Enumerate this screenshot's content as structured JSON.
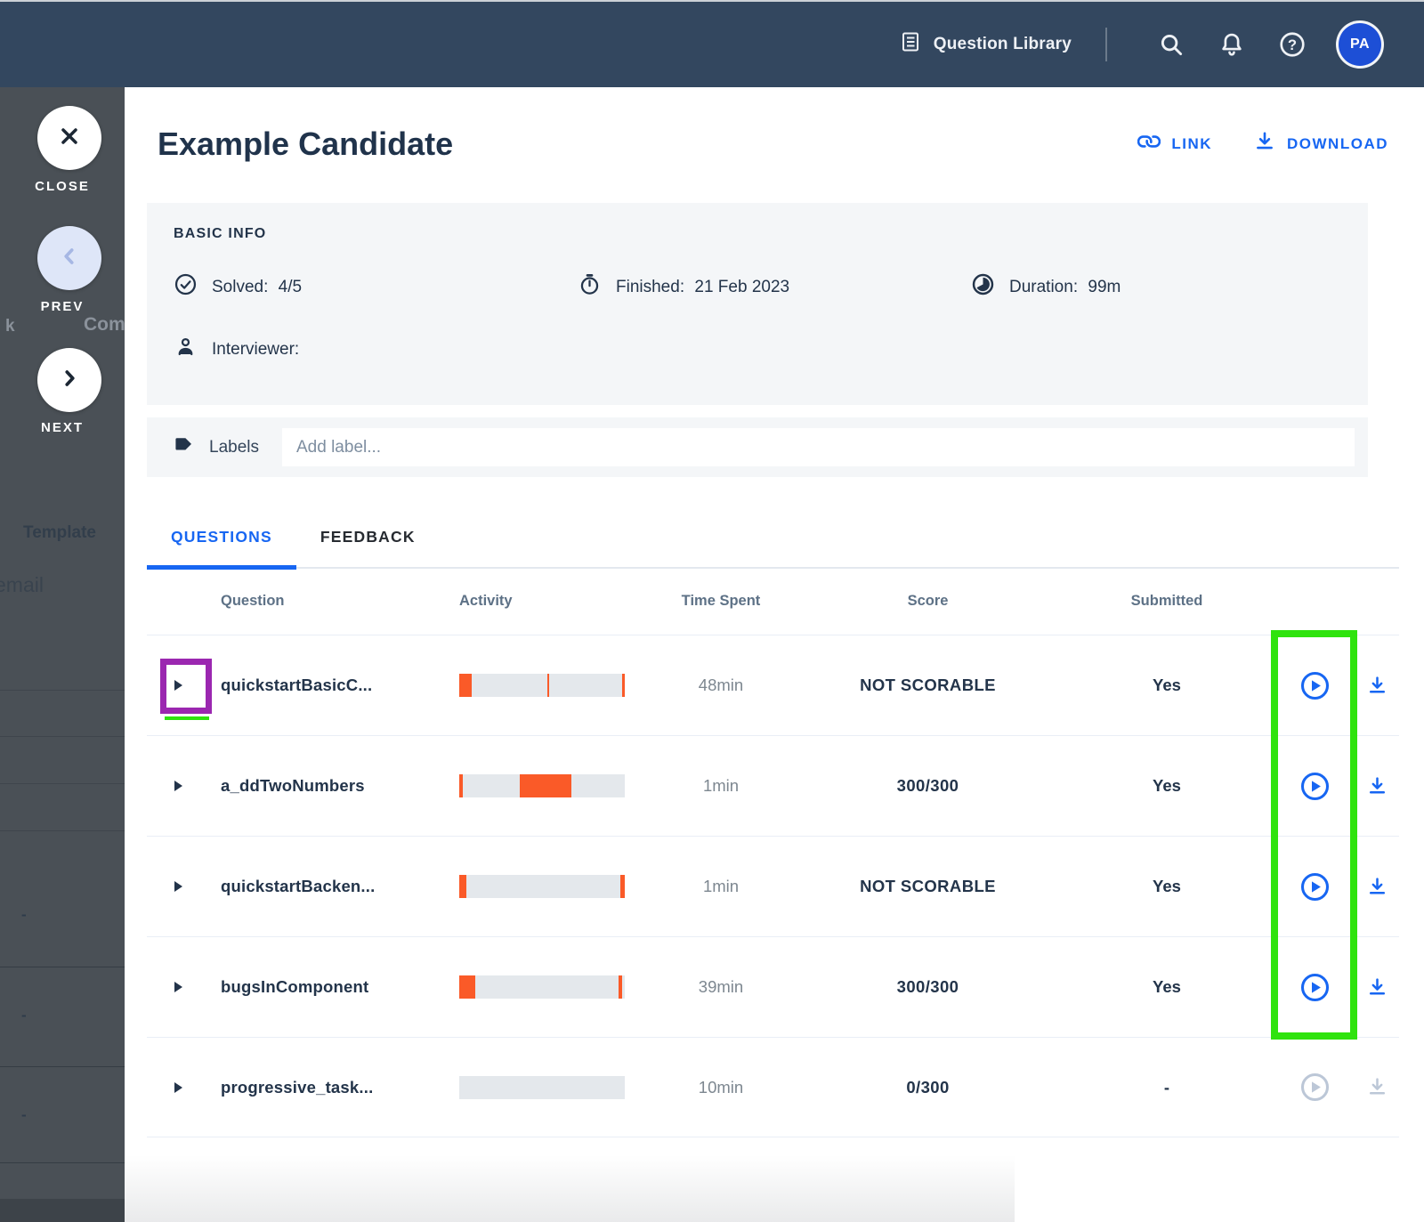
{
  "colors": {
    "navbar_bg": "#33475f",
    "sidebar_overlay": "#4a5056",
    "accent_blue": "#1766f2",
    "activity_orange": "#fa5a28",
    "activity_track": "#e4e8ec",
    "card_bg": "#f4f6f8",
    "dark_text": "#23344a",
    "annotation_green": "#2fe30e",
    "annotation_purple": "#9b27b0",
    "avatar_bg": "#1d4fd6"
  },
  "navbar": {
    "question_library": "Question Library",
    "avatar_initials": "PA"
  },
  "sidebar": {
    "close_label": "CLOSE",
    "prev_label": "PREV",
    "next_label": "NEXT",
    "background_fragments": {
      "left_fragment": "k",
      "right_fragment": "Com",
      "template": "Template",
      "email": "email",
      "dashes": [
        "-",
        "-",
        "-",
        "-"
      ]
    }
  },
  "header": {
    "title": "Example Candidate",
    "link_label": "LINK",
    "download_label": "DOWNLOAD"
  },
  "basic_info": {
    "section_title": "BASIC INFO",
    "solved_label": "Solved:",
    "solved_value": "4/5",
    "finished_label": "Finished:",
    "finished_value": "21 Feb 2023",
    "duration_label": "Duration:",
    "duration_value": "99m",
    "interviewer_label": "Interviewer:"
  },
  "labels_row": {
    "label": "Labels",
    "placeholder": "Add label..."
  },
  "tabs": {
    "questions": "QUESTIONS",
    "feedback": "FEEDBACK"
  },
  "table": {
    "columns": [
      "Question",
      "Activity",
      "Time Spent",
      "Score",
      "Submitted"
    ],
    "rows": [
      {
        "question": "quickstartBasicC...",
        "time": "48min",
        "score": "NOT SCORABLE",
        "submitted": "Yes",
        "enabled": true,
        "activity": [
          [
            0,
            0.077
          ],
          [
            0.53,
            0.014
          ],
          [
            0.985,
            0.015
          ]
        ]
      },
      {
        "question": "a_ddTwoNumbers",
        "time": "1min",
        "score": "300/300",
        "submitted": "Yes",
        "enabled": true,
        "activity": [
          [
            0,
            0.022
          ],
          [
            0.365,
            0.315
          ]
        ]
      },
      {
        "question": "quickstartBacken...",
        "time": "1min",
        "score": "NOT SCORABLE",
        "submitted": "Yes",
        "enabled": true,
        "activity": [
          [
            0,
            0.045
          ],
          [
            0.975,
            0.025
          ]
        ]
      },
      {
        "question": "bugsInComponent",
        "time": "39min",
        "score": "300/300",
        "submitted": "Yes",
        "enabled": true,
        "activity": [
          [
            0,
            0.095
          ],
          [
            0.965,
            0.02
          ]
        ]
      },
      {
        "question": "progressive_task...",
        "time": "10min",
        "score": "0/300",
        "submitted": "-",
        "enabled": false,
        "activity": []
      }
    ]
  }
}
